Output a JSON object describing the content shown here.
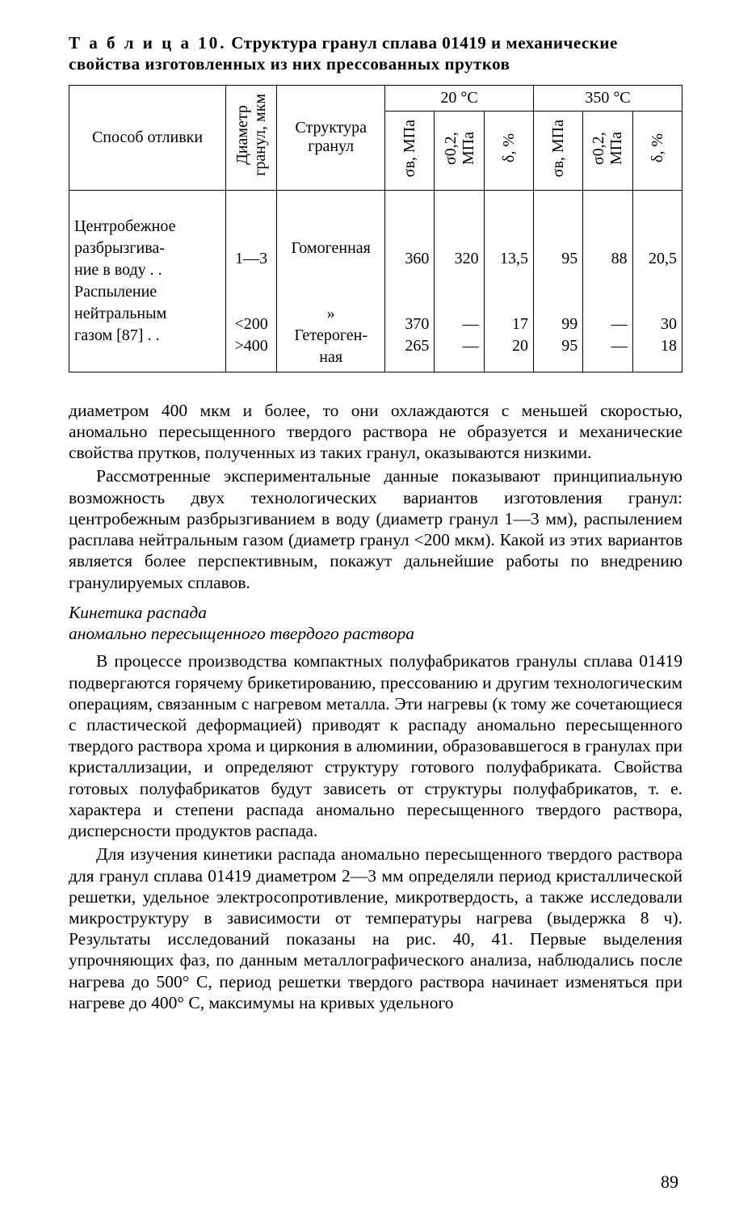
{
  "table": {
    "caption_label": "Т а б л и ц а  10.",
    "caption_text": "Структура гранул сплава 01419 и механические свойства изготовленных из них прессованных прутков",
    "head": {
      "method": "Способ отливки",
      "diameter": "Диаметр\nгранул, мкм",
      "structure": "Структура\nгранул",
      "t20": "20 °C",
      "t350": "350 °C",
      "sigma_b": "σв, МПа",
      "sigma_02": "σ0,2,\nМПа",
      "delta": "δ, %"
    },
    "body": {
      "method_lines": [
        "Центробежное",
        "разбрызгива-",
        "ние в воду .   .",
        "Распыление",
        "нейтральным",
        "газом [87] .   ."
      ],
      "diam_lines": [
        "",
        "",
        "1—3",
        "",
        "",
        "<200",
        ">400"
      ],
      "struct_lines": [
        "",
        "",
        "Гомогенная",
        "",
        "",
        "»",
        "Гетероген-",
        "ная"
      ],
      "c20_sb": [
        "",
        "",
        "360",
        "",
        "",
        "370",
        "265"
      ],
      "c20_s02": [
        "",
        "",
        "320",
        "",
        "",
        "—",
        "—"
      ],
      "c20_d": [
        "",
        "",
        "13,5",
        "",
        "",
        "17",
        "20"
      ],
      "c350_sb": [
        "",
        "",
        "95",
        "",
        "",
        "99",
        "95"
      ],
      "c350_s02": [
        "",
        "",
        "88",
        "",
        "",
        "—",
        "—"
      ],
      "c350_d": [
        "",
        "",
        "20,5",
        "",
        "",
        "30",
        "18"
      ]
    }
  },
  "para1": "диаметром 400 мкм и более, то они охлаждаются с меньшей скоростью, аномально пересыщенного твердого раствора не образуется и механические свойства прутков, полученных из таких гранул, оказываются низкими.",
  "para2": "Рассмотренные экспериментальные данные показывают принципиальную возможность двух технологических вариантов изготовления гранул: центробежным разбрызгиванием в воду (диаметр гранул 1—3 мм), распылением расплава нейтральным газом (диаметр гранул <200 мкм). Какой из этих вариантов является более перспективным, покажут дальнейшие работы по внедрению гранулируемых сплавов.",
  "subheading": "Кинетика распада\nаномально пересыщенного твердого раствора",
  "para3": "В процессе производства компактных полуфабрикатов гранулы сплава 01419 подвергаются горячему брикетированию, прессованию и другим технологическим операциям, связанным с нагревом металла. Эти нагревы (к тому же сочетающиеся с пластической деформацией) приводят к распаду аномально пересыщенного твердого раствора хрома и циркония в алюминии, образовавшегося в гранулах при кристаллизации, и определяют структуру готового полуфабриката. Свойства готовых полуфабрикатов будут зависеть от структуры полуфабрикатов, т. е. характера и степени распада аномально пересыщенного твердого раствора, дисперсности продуктов распада.",
  "para4": "Для изучения кинетики распада аномально пересыщенного твердого раствора для гранул сплава 01419 диаметром 2—3 мм определяли период кристаллической решетки, удельное электросопротивление, микротвердость, а также исследовали микроструктуру в зависимости от температуры нагрева (выдержка 8 ч). Результаты исследований показаны на рис. 40, 41. Первые выделения упрочняющих фаз, по данным металлографического анализа, наблюдались после нагрева до 500° С, период решетки твердого раствора начинает изменяться при нагреве до 400° С, максимумы на кривых удельного",
  "page_number": "89"
}
